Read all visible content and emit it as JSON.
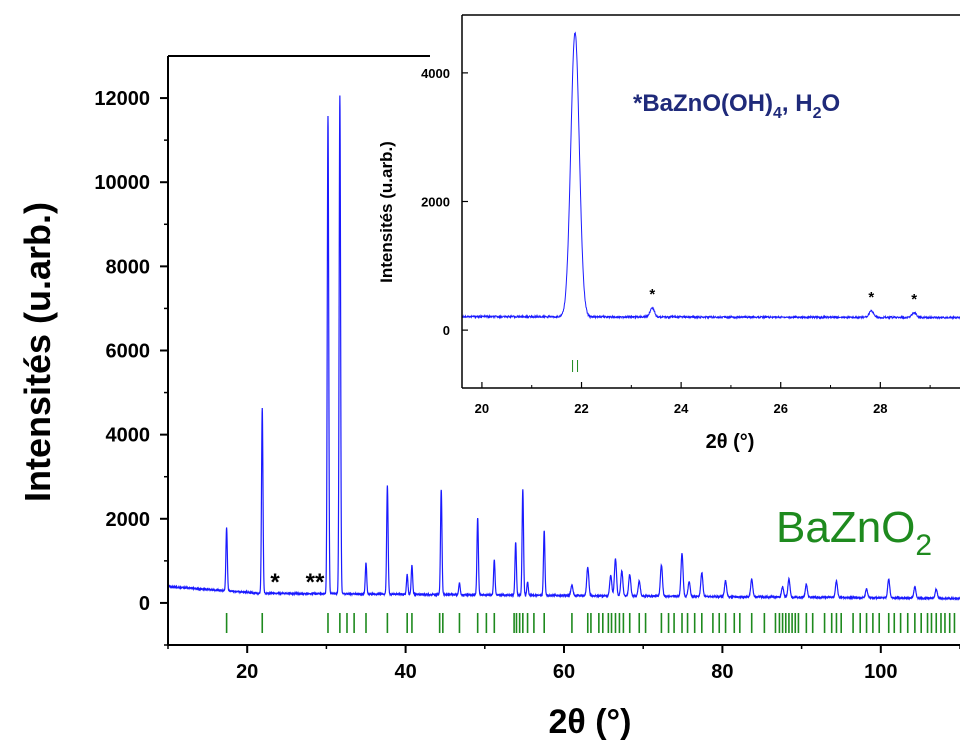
{
  "chart_data": [
    {
      "type": "line",
      "xlabel": "2θ (°)",
      "ylabel": "Intensités (u.arb.)",
      "xlim": [
        10,
        110
      ],
      "ylim": [
        -1000,
        13000
      ],
      "xticks": [
        20,
        40,
        60,
        80,
        100
      ],
      "yticks": [
        0,
        2000,
        4000,
        6000,
        8000,
        10000,
        12000
      ],
      "grid": false,
      "line_color": "#1a1aff",
      "marker_color": "#1e8a1e",
      "phase_label": "BaZnO",
      "phase_label_subscript": "2",
      "impurity_marker_labels": [
        "*",
        "**"
      ],
      "peaks": [
        {
          "x": 17.4,
          "y": 1780
        },
        {
          "x": 21.9,
          "y": 4620
        },
        {
          "x": 30.2,
          "y": 11580
        },
        {
          "x": 31.7,
          "y": 12050
        },
        {
          "x": 35.0,
          "y": 950
        },
        {
          "x": 37.7,
          "y": 2780
        },
        {
          "x": 40.2,
          "y": 680
        },
        {
          "x": 40.8,
          "y": 900
        },
        {
          "x": 44.5,
          "y": 2700
        },
        {
          "x": 46.8,
          "y": 480
        },
        {
          "x": 49.1,
          "y": 2030
        },
        {
          "x": 51.2,
          "y": 1030
        },
        {
          "x": 53.9,
          "y": 1450
        },
        {
          "x": 54.8,
          "y": 2700
        },
        {
          "x": 55.4,
          "y": 500
        },
        {
          "x": 57.5,
          "y": 1720
        },
        {
          "x": 61.0,
          "y": 420
        },
        {
          "x": 63.0,
          "y": 850
        },
        {
          "x": 65.9,
          "y": 650
        },
        {
          "x": 66.5,
          "y": 1050
        },
        {
          "x": 67.3,
          "y": 760
        },
        {
          "x": 68.3,
          "y": 680
        },
        {
          "x": 69.5,
          "y": 520
        },
        {
          "x": 72.3,
          "y": 900
        },
        {
          "x": 74.9,
          "y": 1180
        },
        {
          "x": 75.8,
          "y": 500
        },
        {
          "x": 77.4,
          "y": 720
        },
        {
          "x": 80.4,
          "y": 520
        },
        {
          "x": 83.7,
          "y": 560
        },
        {
          "x": 87.6,
          "y": 380
        },
        {
          "x": 88.4,
          "y": 570
        },
        {
          "x": 90.6,
          "y": 440
        },
        {
          "x": 94.4,
          "y": 520
        },
        {
          "x": 98.2,
          "y": 330
        },
        {
          "x": 101.0,
          "y": 560
        },
        {
          "x": 104.3,
          "y": 380
        },
        {
          "x": 107.0,
          "y": 330
        }
      ],
      "reflection_positions": [
        17.4,
        21.9,
        30.2,
        31.7,
        32.6,
        33.5,
        35.0,
        37.7,
        40.2,
        40.8,
        44.3,
        44.7,
        46.8,
        49.1,
        50.2,
        51.2,
        53.7,
        54.0,
        54.4,
        54.8,
        55.4,
        56.2,
        57.5,
        61.0,
        63.0,
        63.4,
        64.4,
        64.9,
        65.6,
        66.0,
        66.5,
        67.0,
        67.5,
        68.3,
        69.5,
        70.3,
        72.3,
        73.2,
        73.9,
        74.9,
        75.6,
        76.5,
        77.4,
        78.8,
        79.6,
        80.4,
        81.5,
        82.2,
        83.7,
        85.3,
        86.7,
        87.2,
        87.6,
        88.0,
        88.4,
        88.8,
        89.2,
        89.6,
        90.6,
        91.4,
        92.9,
        93.8,
        94.4,
        95.0,
        96.5,
        97.4,
        98.2,
        99.0,
        99.8,
        101.0,
        101.7,
        102.5,
        103.4,
        104.3,
        105.1,
        105.9,
        106.4,
        107.0,
        107.6,
        108.1,
        108.7,
        109.3
      ]
    },
    {
      "type": "line",
      "xlabel": "2θ (°)",
      "ylabel": "Intensités (u.arb.)",
      "xlim": [
        19.6,
        29.6
      ],
      "ylim": [
        -900,
        4900
      ],
      "xticks": [
        20,
        22,
        24,
        26,
        28
      ],
      "yticks": [
        0,
        2000,
        4000
      ],
      "grid": false,
      "annotation": "*BaZnO(OH)",
      "annotation_subscript_1": "4",
      "annotation_mid": ", H",
      "annotation_subscript_2": "2",
      "annotation_tail": "O",
      "annotation_color": "#1f2a7a",
      "peaks": [
        {
          "x": 21.87,
          "y": 4620
        },
        {
          "x": 23.42,
          "y": 340
        },
        {
          "x": 27.82,
          "y": 300
        },
        {
          "x": 28.68,
          "y": 270
        }
      ],
      "impurity_marks": [
        {
          "x": 23.42,
          "label": "*"
        },
        {
          "x": 27.82,
          "label": "*"
        },
        {
          "x": 28.68,
          "label": "*"
        }
      ],
      "reflection_positions": [
        21.82,
        21.92
      ]
    }
  ]
}
